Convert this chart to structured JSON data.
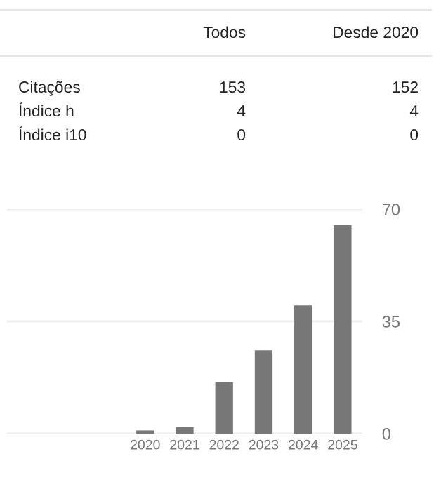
{
  "chart_data": [
    {
      "type": "other",
      "data_labels": true,
      "categories": [
        "Citações",
        "Índice h",
        "Índice i10"
      ],
      "series": [
        {
          "name": "Todos",
          "values": [
            153,
            4,
            0
          ]
        },
        {
          "name": "Desde 2020",
          "values": [
            152,
            4,
            0
          ]
        }
      ]
    },
    {
      "type": "bar",
      "categories": [
        "2020",
        "2021",
        "2022",
        "2023",
        "2024",
        "2025"
      ],
      "values": [
        1,
        2,
        16,
        26,
        40,
        65
      ],
      "color": "#777777",
      "ylim": [
        0,
        70
      ],
      "yticks": [
        0,
        35,
        70
      ],
      "grid": "y"
    }
  ]
}
